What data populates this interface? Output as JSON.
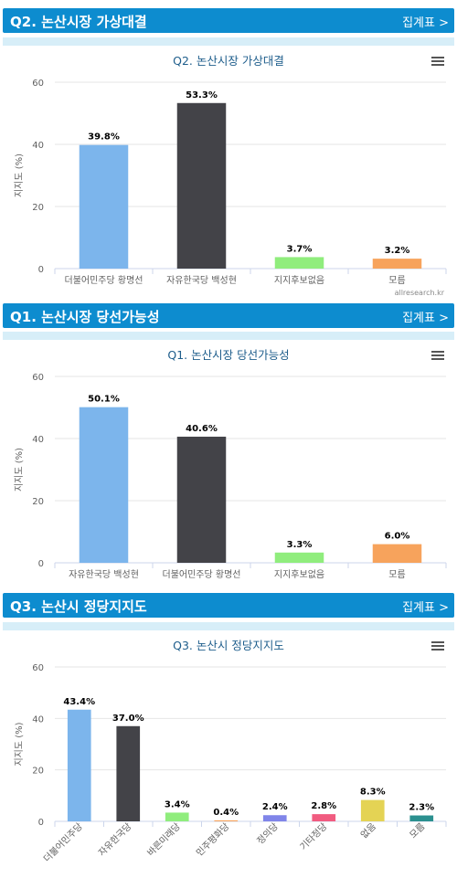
{
  "sections": [
    {
      "header": "Q2. 논산시장 가상대결",
      "link": "집계표 >",
      "chart_data": {
        "type": "bar",
        "title": "Q2. 논산시장 가상대결",
        "ylabel": "지지도 (%)",
        "xlabel": "",
        "ylim": [
          0,
          60
        ],
        "yticks": [
          0,
          20,
          40,
          60
        ],
        "categories": [
          "더불어민주당 황명선",
          "자유한국당 백성현",
          "지지후보없음",
          "모름"
        ],
        "values": [
          39.8,
          53.3,
          3.7,
          3.2
        ],
        "labels": [
          "39.8%",
          "53.3%",
          "3.7%",
          "3.2%"
        ],
        "colors": [
          "#7cb5ec",
          "#434348",
          "#90ed7d",
          "#f7a35c"
        ],
        "legend": false,
        "grid": true
      },
      "watermark": "allresearch.kr"
    },
    {
      "header": "Q1. 논산시장 당선가능성",
      "link": "집계표 >",
      "chart_data": {
        "type": "bar",
        "title": "Q1. 논산시장 당선가능성",
        "ylabel": "지지도 (%)",
        "xlabel": "",
        "ylim": [
          0,
          60
        ],
        "yticks": [
          0,
          20,
          40,
          60
        ],
        "categories": [
          "자유한국당 백성현",
          "더불어민주당 황명선",
          "지지후보없음",
          "모름"
        ],
        "values": [
          50.1,
          40.6,
          3.3,
          6.0
        ],
        "labels": [
          "50.1%",
          "40.6%",
          "3.3%",
          "6.0%"
        ],
        "colors": [
          "#7cb5ec",
          "#434348",
          "#90ed7d",
          "#f7a35c"
        ],
        "legend": false,
        "grid": true
      }
    },
    {
      "header": "Q3. 논산시 정당지지도",
      "link": "집계표 >",
      "chart_data": {
        "type": "bar",
        "title": "Q3. 논산시 정당지지도",
        "ylabel": "지지도 (%)",
        "xlabel": "",
        "ylim": [
          0,
          60
        ],
        "yticks": [
          0,
          20,
          40,
          60
        ],
        "categories": [
          "더불어민주당",
          "자유한국당",
          "바른미래당",
          "민주평화당",
          "정의당",
          "기타정당",
          "없음",
          "모름"
        ],
        "values": [
          43.4,
          37.0,
          3.4,
          0.4,
          2.4,
          2.8,
          8.3,
          2.3
        ],
        "labels": [
          "43.4%",
          "37.0%",
          "3.4%",
          "0.4%",
          "2.4%",
          "2.8%",
          "8.3%",
          "2.3%"
        ],
        "colors": [
          "#7cb5ec",
          "#434348",
          "#90ed7d",
          "#f7a35c",
          "#8085e9",
          "#f15c80",
          "#e4d354",
          "#2b908f"
        ],
        "legend": false,
        "grid": true
      }
    }
  ]
}
